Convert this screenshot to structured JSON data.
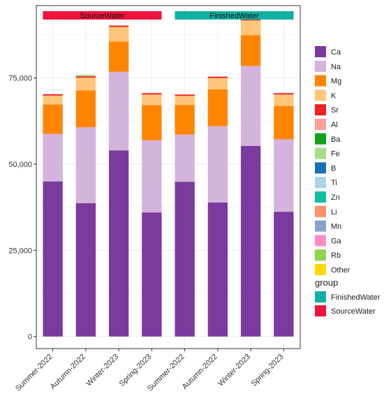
{
  "chart_data": {
    "type": "bar",
    "stacked": true,
    "categories": [
      "Summer-2022",
      "Autumn-2022",
      "Winter-2023",
      "Spring-2023",
      "Summer-2022",
      "Autumn-2022",
      "Winter-2023",
      "Spring-2023"
    ],
    "group_of_category": [
      "SourceWater",
      "SourceWater",
      "SourceWater",
      "SourceWater",
      "FinishedWater",
      "FinishedWater",
      "FinishedWater",
      "FinishedWater"
    ],
    "group_labels": [
      {
        "name": "SourceWater",
        "color": "#F0143C",
        "from": 0,
        "to": 3
      },
      {
        "name": "FinishedWater",
        "color": "#12B0A4",
        "from": 4,
        "to": 7
      }
    ],
    "group_legend": {
      "title": "group",
      "entries": [
        {
          "name": "FinishedWater",
          "color": "#12B0A4"
        },
        {
          "name": "SourceWater",
          "color": "#F0143C"
        }
      ]
    },
    "series": [
      {
        "name": "Ca",
        "color": "#7A3A9E",
        "values": [
          45000,
          38700,
          54000,
          36000,
          44900,
          38900,
          55300,
          36200
        ]
      },
      {
        "name": "Na",
        "color": "#D4B3DD",
        "values": [
          13800,
          22000,
          22800,
          20900,
          13700,
          22100,
          23200,
          21000
        ]
      },
      {
        "name": "Mg",
        "color": "#FF8500",
        "values": [
          8500,
          10700,
          8800,
          10200,
          8600,
          10700,
          8900,
          9700
        ]
      },
      {
        "name": "K",
        "color": "#FFC679",
        "values": [
          2600,
          3700,
          4200,
          3100,
          2600,
          3300,
          4300,
          3300
        ]
      },
      {
        "name": "Sr",
        "color": "#F02020",
        "values": [
          400,
          400,
          400,
          400,
          400,
          400,
          400,
          400
        ]
      },
      {
        "name": "Al",
        "color": "#FA9E9A",
        "values": [
          0,
          0,
          0,
          0,
          0,
          0,
          0,
          0
        ]
      },
      {
        "name": "Ba",
        "color": "#11A11C",
        "values": [
          0,
          0,
          0,
          0,
          0,
          0,
          0,
          0
        ]
      },
      {
        "name": "Fe",
        "color": "#A6DE87",
        "values": [
          0,
          400,
          0,
          0,
          0,
          0,
          0,
          0
        ]
      },
      {
        "name": "B",
        "color": "#1871B4",
        "values": [
          0,
          0,
          0,
          0,
          0,
          0,
          0,
          0
        ]
      },
      {
        "name": "Ti",
        "color": "#A8D5E7",
        "values": [
          0,
          0,
          0,
          0,
          0,
          0,
          0,
          0
        ]
      },
      {
        "name": "Zn",
        "color": "#12C09E",
        "values": [
          0,
          0,
          0,
          0,
          0,
          0,
          0,
          0
        ]
      },
      {
        "name": "Li",
        "color": "#FF9166",
        "values": [
          0,
          0,
          0,
          0,
          0,
          0,
          0,
          0
        ]
      },
      {
        "name": "Mn",
        "color": "#8AA2CE",
        "values": [
          0,
          0,
          0,
          0,
          0,
          0,
          0,
          0
        ]
      },
      {
        "name": "Ga",
        "color": "#FF8CC7",
        "values": [
          0,
          0,
          0,
          0,
          0,
          0,
          0,
          0
        ]
      },
      {
        "name": "Rb",
        "color": "#90D54B",
        "values": [
          0,
          0,
          0,
          0,
          0,
          0,
          0,
          0
        ]
      },
      {
        "name": "Other",
        "color": "#FFD901",
        "values": [
          0,
          0,
          0,
          0,
          0,
          0,
          0,
          0
        ]
      }
    ],
    "yticks": [
      0,
      25000,
      50000,
      75000
    ],
    "ytick_labels": [
      "0",
      "25,000",
      "50,000",
      "75,000"
    ],
    "ylim": [
      -3500,
      96000
    ],
    "xlabel": "",
    "ylabel": "",
    "grid": true,
    "legend_position": "right"
  }
}
